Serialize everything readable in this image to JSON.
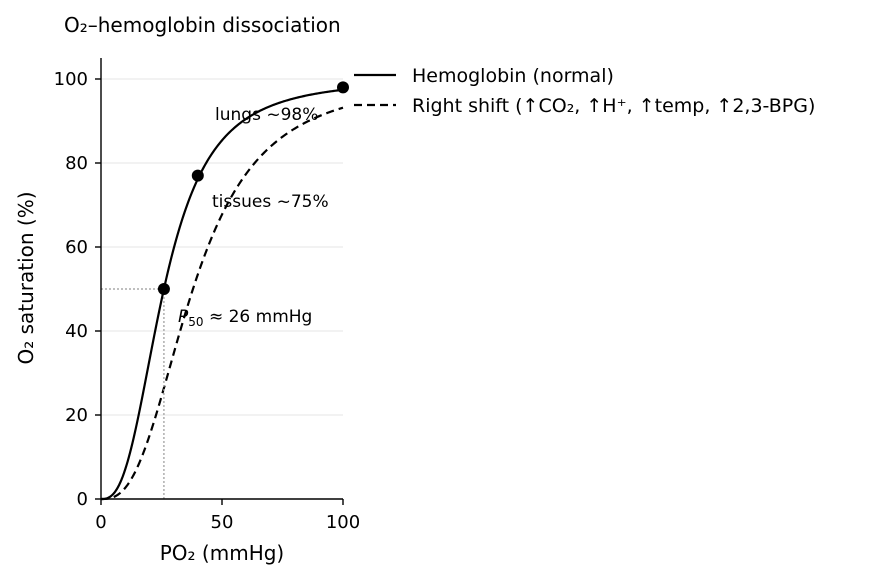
{
  "chart_data": {
    "type": "line",
    "title": "O₂–hemoglobin dissociation",
    "xlabel": "PO₂ (mmHg)",
    "ylabel": "O₂ saturation (%)",
    "xlim": [
      0,
      100
    ],
    "ylim": [
      0,
      105
    ],
    "xticks": [
      0,
      50,
      100
    ],
    "yticks": [
      0,
      20,
      40,
      60,
      80,
      100
    ],
    "grid": "horizontal",
    "legend_position": "outside-top-right",
    "series": [
      {
        "name": "Hemoglobin (normal)",
        "style": "solid",
        "color": "#000000",
        "p50": 26,
        "hill_n": 2.7,
        "asymptote": 100
      },
      {
        "name": "Right shift (↑CO₂, ↑H⁺, ↑temp, ↑2,3-BPG)",
        "style": "dashed",
        "color": "#000000",
        "p50": 38,
        "hill_n": 2.7,
        "asymptote": 100
      }
    ],
    "points": [
      {
        "x": 26,
        "y": 50
      },
      {
        "x": 40,
        "y": 77
      },
      {
        "x": 100,
        "y": 98
      }
    ],
    "reference_lines": {
      "x": 26,
      "y": 50
    },
    "annotations": [
      {
        "text": "lungs ~98%",
        "x": 94,
        "y": 90
      },
      {
        "text": "tissues ~75%",
        "x": 45,
        "y": 69
      },
      {
        "italic": "P",
        "sub": "50",
        "rest": " ≈ 26 mmHg",
        "x": 32,
        "y": 42
      }
    ]
  }
}
